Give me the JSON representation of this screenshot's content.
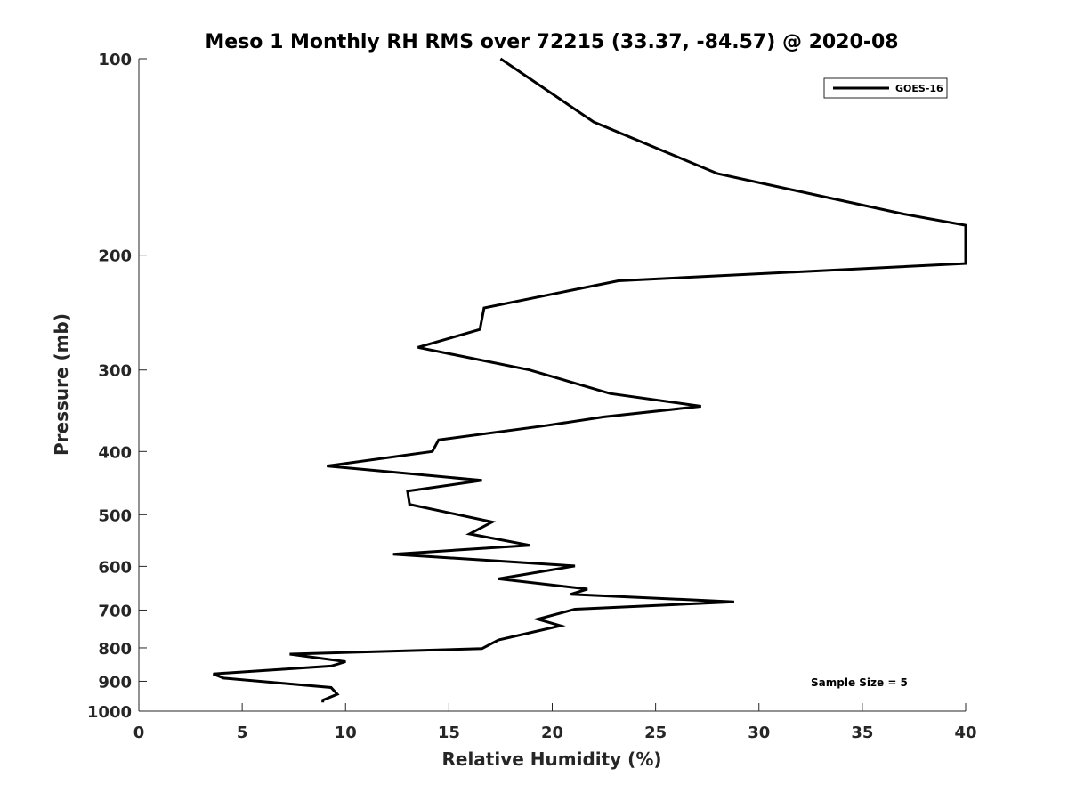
{
  "chart_data": {
    "type": "line",
    "title": "Meso 1 Monthly RH RMS over 72215 (33.37, -84.57) @ 2020-08",
    "xlabel": "Relative Humidity (%)",
    "ylabel": "Pressure (mb)",
    "xlim": [
      0,
      40
    ],
    "ylim": [
      1000,
      100
    ],
    "yscale": "log",
    "y_reversed": true,
    "x_ticks": [
      0,
      5,
      10,
      15,
      20,
      25,
      30,
      35,
      40
    ],
    "y_ticks": [
      100,
      200,
      300,
      400,
      500,
      600,
      700,
      800,
      900,
      1000
    ],
    "grid": false,
    "legend_position": "top-right",
    "annotation": "Sample Size = 5",
    "series": [
      {
        "name": "GOES-16",
        "color": "#000000",
        "points": [
          [
            17.5,
            100
          ],
          [
            22.0,
            125
          ],
          [
            28.0,
            150
          ],
          [
            37.0,
            173
          ],
          [
            40.0,
            180
          ],
          [
            40.0,
            206
          ],
          [
            23.2,
            219
          ],
          [
            16.7,
            241
          ],
          [
            16.5,
            260
          ],
          [
            13.5,
            277
          ],
          [
            18.9,
            300
          ],
          [
            22.8,
            326
          ],
          [
            27.2,
            341
          ],
          [
            22.5,
            354
          ],
          [
            19.7,
            365
          ],
          [
            14.5,
            384
          ],
          [
            14.2,
            400
          ],
          [
            9.1,
            421
          ],
          [
            16.6,
            443
          ],
          [
            13.0,
            460
          ],
          [
            13.1,
            482
          ],
          [
            17.1,
            513
          ],
          [
            16.0,
            535
          ],
          [
            18.9,
            557
          ],
          [
            12.3,
            575
          ],
          [
            21.1,
            599
          ],
          [
            17.4,
            627
          ],
          [
            21.7,
            650
          ],
          [
            20.9,
            662
          ],
          [
            28.8,
            680
          ],
          [
            21.1,
            698
          ],
          [
            19.3,
            723
          ],
          [
            20.4,
            740
          ],
          [
            19.1,
            756
          ],
          [
            17.4,
            778
          ],
          [
            16.6,
            802
          ],
          [
            7.3,
            818
          ],
          [
            10.0,
            840
          ],
          [
            9.3,
            853
          ],
          [
            3.6,
            877
          ],
          [
            4.1,
            890
          ],
          [
            9.3,
            920
          ],
          [
            9.6,
            942
          ],
          [
            8.9,
            962
          ],
          [
            8.9,
            970
          ]
        ]
      }
    ]
  }
}
